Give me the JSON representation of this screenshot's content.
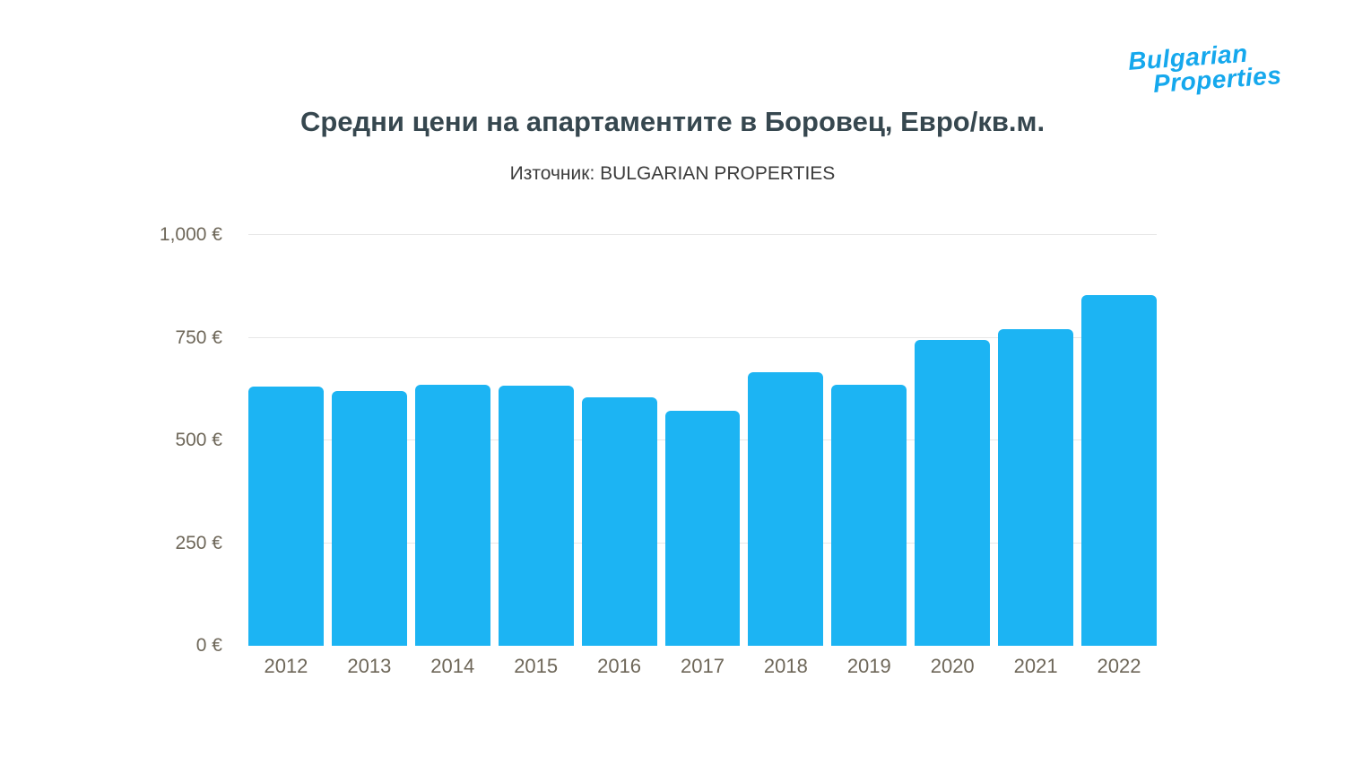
{
  "logo": {
    "line1": "Bulgarian",
    "line2": "Properties"
  },
  "title": "Средни цени на апартаментите в Боровец, Евро/кв.м.",
  "subtitle": "Източник: BULGARIAN PROPERTIES",
  "colors": {
    "bar": "#1cb4f3",
    "logo": "#15a8ed",
    "title": "#36474f",
    "axis_label": "#6e6759",
    "gridline": "#e7e7e7"
  },
  "chart_data": {
    "type": "bar",
    "title": "Средни цени на апартаментите в Боровец, Евро/кв.м.",
    "subtitle": "Източник: BULGARIAN PROPERTIES",
    "categories": [
      "2012",
      "2013",
      "2014",
      "2015",
      "2016",
      "2017",
      "2018",
      "2019",
      "2020",
      "2021",
      "2022"
    ],
    "values": [
      630,
      620,
      636,
      633,
      605,
      572,
      665,
      635,
      745,
      770,
      854
    ],
    "xlabel": "",
    "ylabel": "Евро/кв.м.",
    "ylim": [
      0,
      1000
    ],
    "yticks": [
      {
        "value": 0,
        "label": "0 €"
      },
      {
        "value": 250,
        "label": "250 €"
      },
      {
        "value": 500,
        "label": "500 €"
      },
      {
        "value": 750,
        "label": "750 €"
      },
      {
        "value": 1000,
        "label": "1,000 €"
      }
    ],
    "grid": "horizontal",
    "legend_position": "none"
  }
}
